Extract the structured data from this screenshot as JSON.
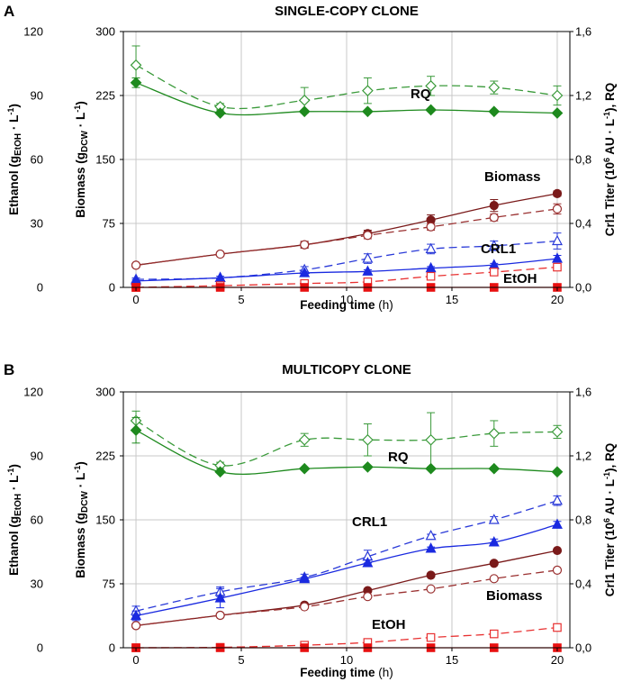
{
  "chart_data": [
    {
      "type": "line",
      "panel": "A",
      "title": "SINGLE-COPY CLONE",
      "xlabel": "Feeding time",
      "xunit": "(h)",
      "x_ticks": [
        "0",
        "5",
        "10",
        "15",
        "20"
      ],
      "xlim": [
        -0.6,
        20.6
      ],
      "y_left_ethanol": {
        "label_main": "Ethanol (g",
        "label_sub": "EtOH",
        "label_end": " · L",
        "label_sup": "-1",
        "label_close": ")",
        "ticks": [
          "0",
          "30",
          "60",
          "90",
          "120"
        ],
        "ylim": [
          0,
          120
        ]
      },
      "y_left_biomass": {
        "label_main": "Biomass (g",
        "label_sub": "DCW",
        "label_end": " · L",
        "label_sup": "-1",
        "label_close": ")",
        "ticks": [
          "0",
          "75",
          "150",
          "225",
          "300"
        ],
        "ylim": [
          0,
          300
        ]
      },
      "y_right": {
        "label_pre": "Crl1 Titer (10",
        "label_sup1": "6",
        "label_mid": " AU · L",
        "label_sup2": "-1",
        "label_end": "), RQ",
        "ticks": [
          "0,0",
          "0,4",
          "0,8",
          "1,2",
          "1,6"
        ],
        "ylim": [
          0,
          1.6
        ]
      },
      "labels": {
        "rq": "RQ",
        "biomass": "Biomass",
        "crl1": "CRL1",
        "etoh": "EtOH"
      },
      "series": [
        {
          "name": "RQ measured",
          "axis": "right",
          "style": "open",
          "marker": "diamond",
          "color": "#3a9a3a",
          "dashed": true,
          "x": [
            0,
            4,
            8,
            11,
            14,
            17,
            20
          ],
          "y": [
            1.39,
            1.13,
            1.17,
            1.23,
            1.26,
            1.25,
            1.2
          ],
          "err": [
            0.12,
            0.02,
            0.08,
            0.08,
            0.06,
            0.04,
            0.06
          ]
        },
        {
          "name": "RQ",
          "axis": "right",
          "style": "filled",
          "marker": "diamond",
          "color": "#1e8a1e",
          "dashed": false,
          "x": [
            0,
            4,
            8,
            11,
            14,
            17,
            20
          ],
          "y": [
            1.28,
            1.09,
            1.1,
            1.1,
            1.11,
            1.1,
            1.09
          ],
          "err": [
            0.03,
            0,
            0,
            0,
            0,
            0,
            0
          ]
        },
        {
          "name": "Biomass total",
          "axis": "biomass",
          "style": "filled",
          "marker": "circle",
          "color": "#7a1a1a",
          "dashed": false,
          "x": [
            0,
            4,
            8,
            11,
            14,
            17,
            20
          ],
          "y": [
            26,
            39,
            50,
            63,
            79,
            96,
            110
          ],
          "err": [
            0,
            0,
            4,
            4,
            6,
            7,
            3
          ]
        },
        {
          "name": "Biomass",
          "axis": "biomass",
          "style": "open",
          "marker": "circle",
          "color": "#9a3030",
          "dashed": true,
          "x": [
            0,
            4,
            8,
            11,
            14,
            17,
            20
          ],
          "y": [
            26,
            39,
            50,
            61,
            71,
            82,
            92
          ],
          "err": [
            0,
            0,
            3,
            4,
            4,
            4,
            6
          ]
        },
        {
          "name": "CRL1 measured",
          "axis": "right",
          "style": "open",
          "marker": "triangle",
          "color": "#2a3ad8",
          "dashed": true,
          "x": [
            0,
            4,
            8,
            11,
            14,
            17,
            20
          ],
          "y": [
            0.05,
            0.06,
            0.11,
            0.18,
            0.24,
            0.26,
            0.29
          ],
          "err": [
            0.01,
            0.01,
            0.02,
            0.03,
            0.03,
            0.03,
            0.05
          ]
        },
        {
          "name": "CRL1",
          "axis": "right",
          "style": "filled",
          "marker": "triangle",
          "color": "#1a2ae0",
          "dashed": false,
          "x": [
            0,
            4,
            8,
            11,
            14,
            17,
            20
          ],
          "y": [
            0.04,
            0.06,
            0.09,
            0.1,
            0.12,
            0.14,
            0.18
          ],
          "err": [
            0.01,
            0,
            0.01,
            0.01,
            0.01,
            0.01,
            0.02
          ]
        },
        {
          "name": "EtOH",
          "axis": "ethanol",
          "style": "open",
          "marker": "square",
          "color": "#e83030",
          "dashed": true,
          "x": [
            0,
            4,
            8,
            11,
            14,
            17,
            20
          ],
          "y": [
            0,
            0.8,
            1.8,
            2.6,
            5.2,
            7.2,
            9.5
          ],
          "err": [
            0,
            0,
            0.5,
            0.5,
            1.2,
            1.2,
            1.5
          ]
        },
        {
          "name": "EtOH base",
          "axis": "ethanol",
          "style": "filled",
          "marker": "square",
          "color": "#e81010",
          "dashed": false,
          "x": [
            0,
            4,
            8,
            11,
            14,
            17,
            20
          ],
          "y": [
            0,
            0,
            0,
            0,
            0,
            0,
            0
          ],
          "err": [
            0,
            0,
            0,
            0,
            0,
            0,
            0
          ]
        }
      ]
    },
    {
      "type": "line",
      "panel": "B",
      "title": "MULTICOPY CLONE",
      "xlabel": "Feeding time",
      "xunit": "(h)",
      "x_ticks": [
        "0",
        "5",
        "10",
        "15",
        "20"
      ],
      "xlim": [
        -0.6,
        20.6
      ],
      "y_left_ethanol": {
        "label_main": "Ethanol (g",
        "label_sub": "EtOH",
        "label_end": " · L",
        "label_sup": "-1",
        "label_close": ")",
        "ticks": [
          "0",
          "30",
          "60",
          "90",
          "120"
        ],
        "ylim": [
          0,
          120
        ]
      },
      "y_left_biomass": {
        "label_main": "Biomass (g",
        "label_sub": "DCW",
        "label_end": " · L",
        "label_sup": "-1",
        "label_close": ")",
        "ticks": [
          "0",
          "75",
          "150",
          "225",
          "300"
        ],
        "ylim": [
          0,
          300
        ]
      },
      "y_right": {
        "label_pre": "Crl1 Titer (10",
        "label_sup1": "6",
        "label_mid": " AU · L",
        "label_sup2": "-1",
        "label_end": "), RQ",
        "ticks": [
          "0,0",
          "0,4",
          "0,8",
          "1,2",
          "1,6"
        ],
        "ylim": [
          0,
          1.6
        ]
      },
      "labels": {
        "rq": "RQ",
        "crl1": "CRL1",
        "biomass": "Biomass",
        "etoh": "EtOH"
      },
      "series": [
        {
          "name": "RQ measured",
          "axis": "right",
          "style": "open",
          "marker": "diamond",
          "color": "#3a9a3a",
          "dashed": true,
          "x": [
            0,
            4,
            8,
            11,
            14,
            17,
            20
          ],
          "y": [
            1.42,
            1.14,
            1.3,
            1.3,
            1.3,
            1.34,
            1.35
          ],
          "err": [
            0.06,
            0.02,
            0.04,
            0.1,
            0.17,
            0.08,
            0.04
          ]
        },
        {
          "name": "RQ",
          "axis": "right",
          "style": "filled",
          "marker": "diamond",
          "color": "#1e8a1e",
          "dashed": false,
          "x": [
            0,
            4,
            8,
            11,
            14,
            17,
            20
          ],
          "y": [
            1.36,
            1.1,
            1.12,
            1.13,
            1.12,
            1.12,
            1.1
          ],
          "err": [
            0.08,
            0,
            0,
            0,
            0,
            0,
            0
          ]
        },
        {
          "name": "CRL1 measured",
          "axis": "right",
          "style": "open",
          "marker": "triangle",
          "color": "#2a3ad8",
          "dashed": true,
          "x": [
            0,
            4,
            8,
            11,
            14,
            17,
            20
          ],
          "y": [
            0.23,
            0.35,
            0.44,
            0.57,
            0.7,
            0.8,
            0.92
          ],
          "err": [
            0.03,
            0.03,
            0.02,
            0.04,
            0.01,
            0.02,
            0.03
          ]
        },
        {
          "name": "CRL1",
          "axis": "right",
          "style": "filled",
          "marker": "triangle",
          "color": "#1a2ae0",
          "dashed": false,
          "x": [
            0,
            4,
            8,
            11,
            14,
            17,
            20
          ],
          "y": [
            0.2,
            0.31,
            0.43,
            0.53,
            0.62,
            0.66,
            0.77
          ],
          "err": [
            0.03,
            0.06,
            0.01,
            0.02,
            0.01,
            0.02,
            0.02
          ]
        },
        {
          "name": "Biomass total",
          "axis": "biomass",
          "style": "filled",
          "marker": "circle",
          "color": "#7a1a1a",
          "dashed": false,
          "x": [
            0,
            4,
            8,
            11,
            14,
            17,
            20
          ],
          "y": [
            26,
            38,
            50,
            67,
            85,
            99,
            114
          ],
          "err": [
            0,
            0,
            0,
            0,
            0,
            0,
            0
          ]
        },
        {
          "name": "Biomass",
          "axis": "biomass",
          "style": "open",
          "marker": "circle",
          "color": "#9a3030",
          "dashed": true,
          "x": [
            0,
            4,
            8,
            11,
            14,
            17,
            20
          ],
          "y": [
            26,
            38,
            48,
            60,
            69,
            81,
            91
          ],
          "err": [
            0,
            0,
            0,
            0,
            0,
            0,
            0
          ]
        },
        {
          "name": "EtOH",
          "axis": "ethanol",
          "style": "open",
          "marker": "square",
          "color": "#e83030",
          "dashed": true,
          "x": [
            0,
            4,
            8,
            11,
            14,
            17,
            20
          ],
          "y": [
            0,
            0.2,
            1.2,
            2.5,
            4.8,
            6.5,
            9.5
          ],
          "err": [
            0,
            0,
            0,
            0,
            0,
            0,
            0
          ]
        },
        {
          "name": "EtOH base",
          "axis": "ethanol",
          "style": "filled",
          "marker": "square",
          "color": "#e81010",
          "dashed": false,
          "x": [
            0,
            4,
            8,
            11,
            14,
            17,
            20
          ],
          "y": [
            0,
            0,
            0,
            0,
            0,
            0,
            0
          ],
          "err": [
            0,
            0,
            0,
            0,
            0,
            0,
            0
          ]
        }
      ]
    }
  ]
}
